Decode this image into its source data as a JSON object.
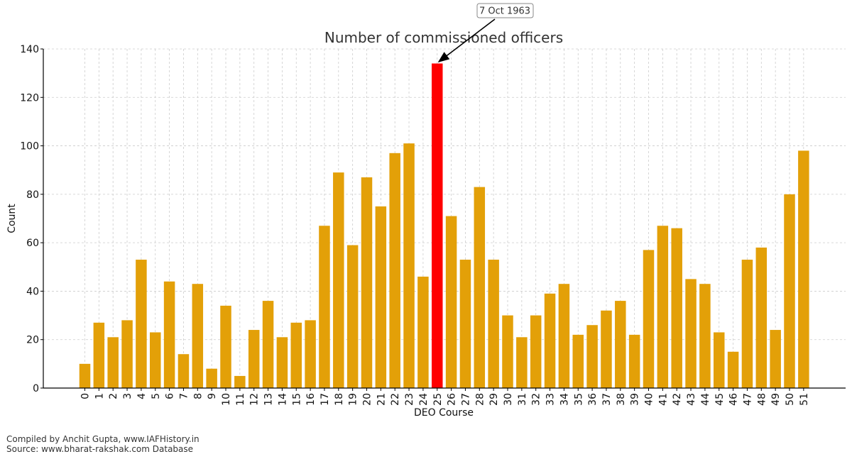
{
  "chart_data": {
    "type": "bar",
    "title": "Number of commissioned officers",
    "xlabel": "DEO Course",
    "ylabel": "Count",
    "ylim": [
      0,
      140
    ],
    "yticks": [
      0,
      20,
      40,
      60,
      80,
      100,
      120,
      140
    ],
    "grid": true,
    "categories": [
      "0",
      "1",
      "2",
      "3",
      "4",
      "5",
      "6",
      "7",
      "8",
      "9",
      "10",
      "11",
      "12",
      "13",
      "14",
      "15",
      "16",
      "17",
      "18",
      "19",
      "20",
      "21",
      "22",
      "23",
      "24",
      "25",
      "26",
      "27",
      "28",
      "29",
      "30",
      "31",
      "32",
      "33",
      "34",
      "35",
      "36",
      "37",
      "38",
      "39",
      "40",
      "41",
      "42",
      "43",
      "44",
      "45",
      "46",
      "47",
      "48",
      "49",
      "50",
      "51"
    ],
    "values": [
      10,
      27,
      21,
      28,
      53,
      23,
      44,
      14,
      43,
      8,
      34,
      5,
      24,
      36,
      21,
      27,
      28,
      67,
      89,
      59,
      87,
      75,
      97,
      101,
      46,
      134,
      71,
      53,
      83,
      53,
      30,
      21,
      30,
      39,
      43,
      22,
      26,
      32,
      36,
      22,
      57,
      67,
      66,
      45,
      43,
      23,
      15,
      53,
      58,
      24,
      80,
      98
    ],
    "bar_color": "#E3A008",
    "highlight_index": 25,
    "highlight_color": "#FF0000",
    "annotation": {
      "text": "7 Oct 1963",
      "target_index": 25
    }
  },
  "footer": {
    "line1": "Compiled by Anchit Gupta, www.IAFHistory.in",
    "line2": "Source: www.bharat-rakshak.com Database"
  }
}
